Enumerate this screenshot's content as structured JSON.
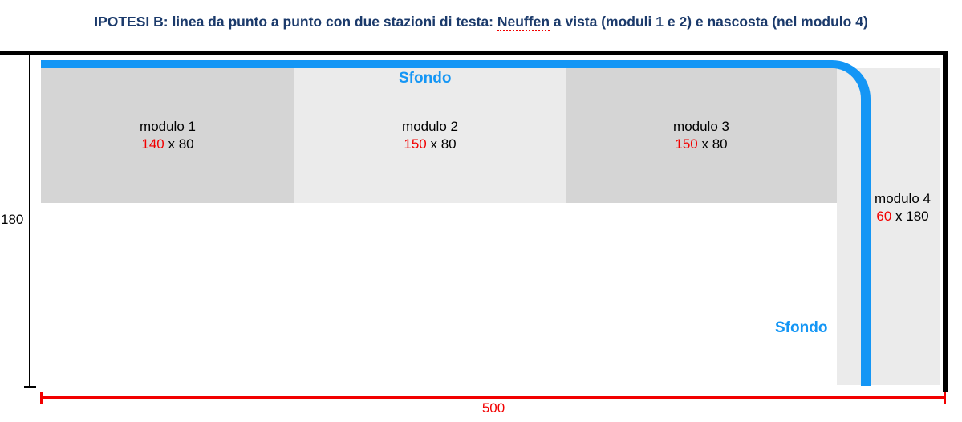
{
  "title": {
    "prefix": "IPOTESI B:",
    "mid": " linea da punto a punto con due stazioni di testa: ",
    "misspelled_word": "Neuffen",
    "suffix": " a vista (moduli 1 e 2) e nascosta (nel modulo 4)"
  },
  "modules": [
    {
      "name": "modulo 1",
      "dim_red": "140",
      "dim_rest": " x 80"
    },
    {
      "name": "modulo 2",
      "dim_red": "150",
      "dim_rest": " x 80"
    },
    {
      "name": "modulo 3",
      "dim_red": "150",
      "dim_rest": " x 80"
    },
    {
      "name": "modulo 4",
      "dim_red": "60",
      "dim_rest": " x 180"
    }
  ],
  "background_labels": {
    "top": "Sfondo",
    "bottom": "Sfondo"
  },
  "dimensions": {
    "height_label": "180",
    "width_label": "500"
  },
  "colors": {
    "accent_blue": "#1496F5",
    "title_navy": "#1B3A6B",
    "dimension_red": "#F20000",
    "module_dark_gray": "#D5D5D5",
    "module_light_gray": "#EBEBEB",
    "frame_black": "#000000"
  }
}
